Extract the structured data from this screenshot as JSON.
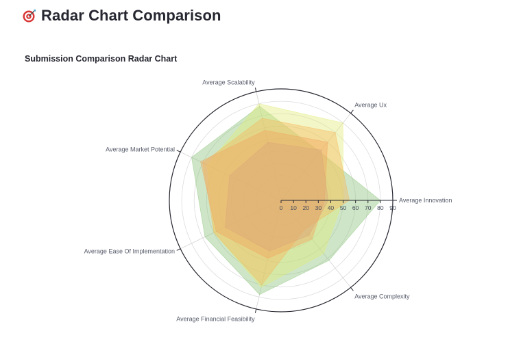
{
  "header": {
    "title": "Radar Chart Comparison",
    "icon": "target-icon"
  },
  "chart_data": {
    "type": "radar",
    "title": "Submission Comparison Radar Chart",
    "axes": [
      "Average Innovation",
      "Average Complexity",
      "Average Financial Feasibility",
      "Average Ease Of Implementation",
      "Average Market Potential",
      "Average Scalability",
      "Average Ux"
    ],
    "radial_range": [
      0,
      90
    ],
    "radial_ticks": [
      0,
      10,
      20,
      30,
      40,
      50,
      60,
      70,
      80,
      90
    ],
    "grid": true,
    "series": [
      {
        "color": "#8bc47a",
        "values": [
          80,
          62,
          78,
          68,
          80,
          78,
          50
        ]
      },
      {
        "color": "#e2ec7a",
        "values": [
          50,
          55,
          72,
          60,
          66,
          80,
          80
        ]
      },
      {
        "color": "#f5b85c",
        "values": [
          55,
          30,
          70,
          60,
          70,
          68,
          70
        ]
      },
      {
        "color": "#f0a860",
        "values": [
          35,
          40,
          48,
          58,
          72,
          58,
          60
        ]
      },
      {
        "color": "#d9a679",
        "values": [
          38,
          36,
          42,
          50,
          46,
          48,
          52
        ]
      }
    ]
  }
}
